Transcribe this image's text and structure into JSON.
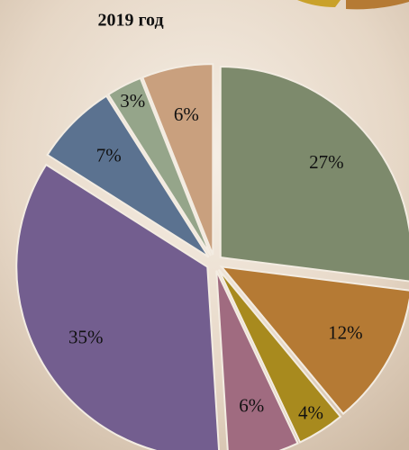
{
  "chart_data": {
    "type": "pie",
    "title": "2019 год",
    "categories": [
      null,
      null,
      null,
      null,
      null,
      null,
      null,
      null
    ],
    "values": [
      27,
      12,
      4,
      6,
      35,
      7,
      3,
      6
    ],
    "value_labels": [
      "27%",
      "12%",
      "4%",
      "6%",
      "35%",
      "7%",
      "3%",
      "6%"
    ],
    "colors": [
      "#7d8a6c",
      "#b57a34",
      "#a88a1e",
      "#a06b80",
      "#735e8f",
      "#5b7290",
      "#95a58a",
      "#c9a07e"
    ]
  }
}
